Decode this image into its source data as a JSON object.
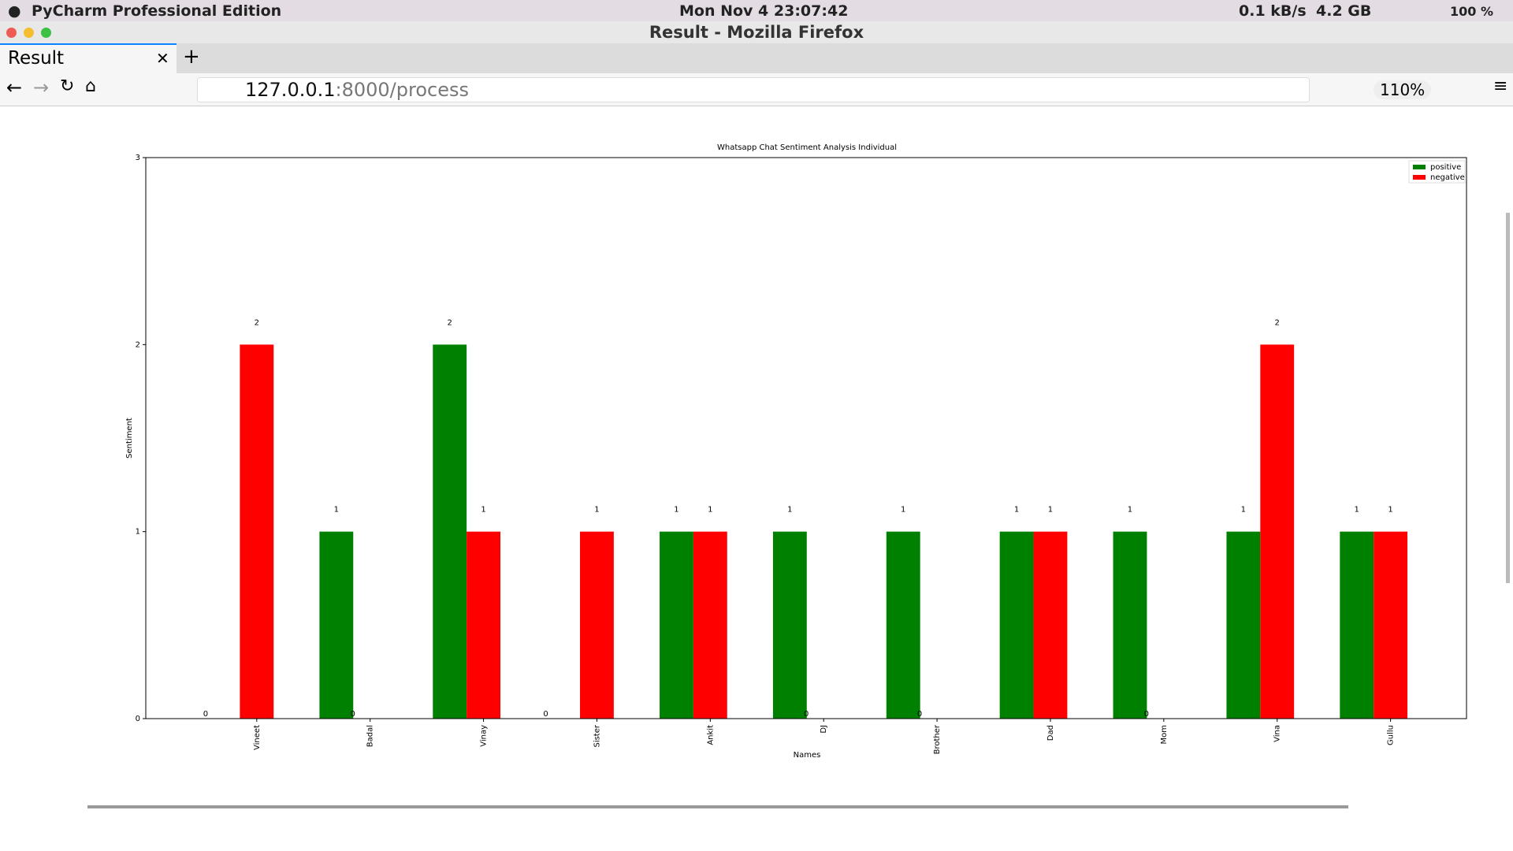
{
  "menubar": {
    "app": "PyCharm Professional Edition",
    "clock": "Mon Nov 4  23:07:42",
    "network": "0.1 kB/s",
    "memory": "4.2 GB",
    "battery": "100 %"
  },
  "window": {
    "title": "Result - Mozilla Firefox"
  },
  "tab": {
    "title": "Result"
  },
  "address": {
    "host": "127.0.0.1",
    "rest": ":8000/process",
    "zoom": "110%"
  },
  "chart_data": {
    "type": "bar",
    "title": "Whatsapp Chat Sentiment Analysis Individual",
    "x_label": "Names",
    "y_label": "Sentiment",
    "categories": [
      "Vineet",
      "Badal",
      "Vinay",
      "Sister",
      "Ankit",
      "DJ",
      "Brother",
      "Dad",
      "Mom",
      "Vina",
      "Gullu"
    ],
    "series": [
      {
        "name": "positive",
        "color": "#008000",
        "values": [
          0,
          1,
          2,
          0,
          1,
          1,
          1,
          1,
          1,
          1,
          1
        ]
      },
      {
        "name": "negative",
        "color": "#ff0000",
        "values": [
          2,
          0,
          1,
          1,
          1,
          0,
          0,
          1,
          0,
          2,
          1
        ]
      }
    ],
    "ylim": [
      0,
      3
    ],
    "yticks": [
      0,
      1,
      2,
      3
    ],
    "legend": "upper right"
  }
}
